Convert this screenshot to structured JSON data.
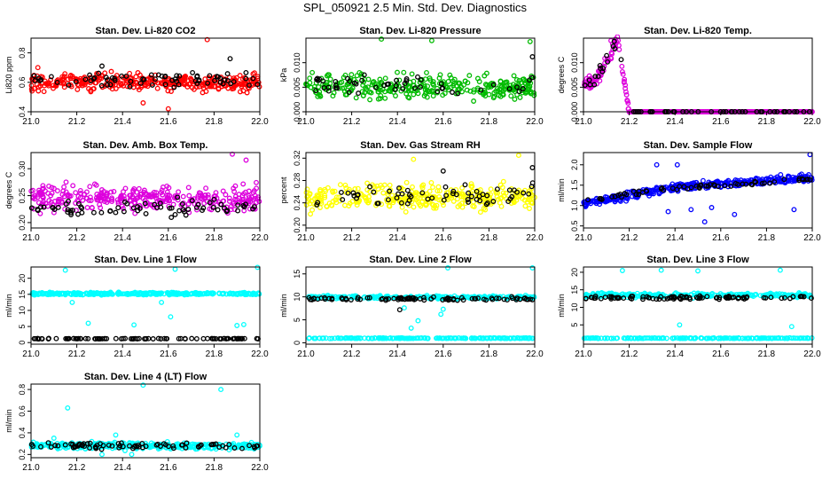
{
  "figure_title": "SPL_050921  2.5 Min. Std. Dev. Diagnostics",
  "chart_data": [
    {
      "type": "scatter",
      "title": "Stan. Dev. Li-820 CO2",
      "ylabel": "Li820 ppm",
      "xlim": [
        21.0,
        22.0
      ],
      "ylim": [
        0.4,
        0.9
      ],
      "xticks": [
        "21.0",
        "21.2",
        "21.4",
        "21.6",
        "21.8",
        "22.0"
      ],
      "yticks": [
        "0.4",
        "0.6",
        "0.8"
      ],
      "ytick_values": [
        0.4,
        0.6,
        0.8
      ],
      "series": [
        {
          "name": "primary",
          "color": "#ff0000",
          "center": 0.6,
          "spread": 0.055,
          "n": 330,
          "outliers": [
            [
              21.77,
              0.89
            ],
            [
              21.03,
              0.7
            ],
            [
              21.6,
              0.42
            ],
            [
              21.49,
              0.46
            ]
          ]
        },
        {
          "name": "secondary",
          "color": "#000000",
          "center": 0.62,
          "spread": 0.05,
          "n": 70,
          "outliers": [
            [
              21.31,
              0.71
            ],
            [
              21.87,
              0.76
            ]
          ]
        }
      ]
    },
    {
      "type": "scatter",
      "title": "Stan. Dev. Li-820 Pressure",
      "ylabel": "kPa",
      "xlim": [
        21.0,
        22.0
      ],
      "ylim": [
        0.0,
        0.015
      ],
      "xticks": [
        "21.0",
        "21.2",
        "21.4",
        "21.6",
        "21.8",
        "22.0"
      ],
      "yticks": [
        "0.000",
        "0.005",
        "0.010"
      ],
      "ytick_values": [
        0.0,
        0.005,
        0.01
      ],
      "series": [
        {
          "name": "primary",
          "color": "#00bb00",
          "center": 0.005,
          "spread": 0.0024,
          "n": 330,
          "outliers": [
            [
              21.33,
              0.0148
            ],
            [
              21.98,
              0.0143
            ],
            [
              21.55,
              0.0145
            ]
          ]
        },
        {
          "name": "secondary",
          "color": "#000000",
          "center": 0.0055,
          "spread": 0.0018,
          "n": 50,
          "outliers": [
            [
              21.99,
              0.0112
            ]
          ]
        }
      ]
    },
    {
      "type": "scatter",
      "title": "Stan. Dev. Li-820 Temp.",
      "ylabel": "degrees C",
      "xlim": [
        21.0,
        22.0
      ],
      "ylim": [
        0.0,
        0.015
      ],
      "xticks": [
        "21.0",
        "21.2",
        "21.4",
        "21.6",
        "21.8",
        "22.0"
      ],
      "yticks": [
        "0.000",
        "0.005",
        "0.010"
      ],
      "ytick_values": [
        0.0,
        0.005,
        0.01
      ],
      "series": [
        {
          "name": "primary",
          "color": "#dd00dd",
          "shape": "temp",
          "n": 420,
          "outliers": [
            [
              21.12,
              0.0145
            ],
            [
              21.14,
              0.0148
            ]
          ]
        },
        {
          "name": "secondary",
          "color": "#000000",
          "shape": "temp",
          "n": 60,
          "outliers": []
        }
      ]
    },
    {
      "type": "scatter",
      "title": "Stan. Dev. Amb. Box Temp.",
      "ylabel": "degrees C",
      "xlim": [
        21.0,
        22.0
      ],
      "ylim": [
        0.19,
        0.33
      ],
      "xticks": [
        "21.0",
        "21.2",
        "21.4",
        "21.6",
        "21.8",
        "22.0"
      ],
      "yticks": [
        "0.20",
        "0.25",
        "0.30"
      ],
      "ytick_values": [
        0.2,
        0.25,
        0.3
      ],
      "series": [
        {
          "name": "primary",
          "color": "#dd00dd",
          "center": 0.245,
          "spread": 0.022,
          "n": 330,
          "outliers": [
            [
              21.88,
              0.327
            ],
            [
              21.94,
              0.316
            ]
          ]
        },
        {
          "name": "secondary",
          "color": "#000000",
          "center": 0.228,
          "spread": 0.012,
          "n": 70,
          "outliers": [
            [
              21.64,
              0.247
            ],
            [
              21.8,
              0.243
            ]
          ]
        }
      ]
    },
    {
      "type": "scatter",
      "title": "Stan. Dev. Gas Stream RH",
      "ylabel": "percent",
      "xlim": [
        21.0,
        22.0
      ],
      "ylim": [
        0.195,
        0.33
      ],
      "xticks": [
        "21.0",
        "21.2",
        "21.4",
        "21.6",
        "21.8",
        "22.0"
      ],
      "yticks": [
        "0.20",
        "0.24",
        "0.28",
        "0.32"
      ],
      "ytick_values": [
        0.2,
        0.24,
        0.28,
        0.32
      ],
      "series": [
        {
          "name": "primary",
          "color": "#ffff00",
          "center": 0.25,
          "spread": 0.022,
          "n": 330,
          "outliers": [
            [
              21.93,
              0.325
            ],
            [
              21.47,
              0.318
            ]
          ]
        },
        {
          "name": "secondary",
          "color": "#000000",
          "center": 0.255,
          "spread": 0.018,
          "n": 60,
          "outliers": [
            [
              21.99,
              0.303
            ],
            [
              21.6,
              0.297
            ]
          ]
        }
      ]
    },
    {
      "type": "scatter",
      "title": "Stan. Dev. Sample Flow",
      "ylabel": "ml/min",
      "xlim": [
        21.0,
        22.0
      ],
      "ylim": [
        0.45,
        2.3
      ],
      "xticks": [
        "21.0",
        "21.2",
        "21.4",
        "21.6",
        "21.8",
        "22.0"
      ],
      "yticks": [
        "0.5",
        "1.0",
        "1.5",
        "2.0"
      ],
      "ytick_values": [
        0.5,
        1.0,
        1.5,
        2.0
      ],
      "series": [
        {
          "name": "primary",
          "color": "#0000ff",
          "shape": "trend",
          "start": 1.05,
          "end": 1.65,
          "spread": 0.09,
          "n": 360,
          "outliers": [
            [
              21.99,
              2.25
            ],
            [
              21.32,
              2.0
            ],
            [
              21.47,
              0.9
            ],
            [
              21.53,
              0.6
            ],
            [
              21.56,
              0.95
            ],
            [
              21.37,
              0.85
            ],
            [
              21.92,
              0.9
            ],
            [
              21.66,
              0.78
            ],
            [
              21.41,
              2.0
            ]
          ]
        },
        {
          "name": "secondary",
          "color": "#000000",
          "shape": "trend",
          "start": 1.1,
          "end": 1.62,
          "spread": 0.05,
          "n": 60,
          "outliers": []
        }
      ]
    },
    {
      "type": "scatter",
      "title": "Stan. Dev. Line 1 Flow",
      "ylabel": "ml/min",
      "xlim": [
        21.0,
        22.0
      ],
      "ylim": [
        -0.5,
        23.5
      ],
      "xticks": [
        "21.0",
        "21.2",
        "21.4",
        "21.6",
        "21.8",
        "22.0"
      ],
      "yticks": [
        "0",
        "5",
        "10",
        "15",
        "20"
      ],
      "ytick_values": [
        0,
        5,
        10,
        15,
        20
      ],
      "series": [
        {
          "name": "primary",
          "color": "#00ffff",
          "center": 15.2,
          "spread": 0.35,
          "n": 330,
          "outliers": [
            [
              21.15,
              22.5
            ],
            [
              21.63,
              22.8
            ],
            [
              21.99,
              23.4
            ],
            [
              21.18,
              12.5
            ],
            [
              21.25,
              6
            ],
            [
              21.45,
              5.5
            ],
            [
              21.61,
              8
            ],
            [
              21.9,
              5.3
            ],
            [
              21.93,
              5.6
            ],
            [
              21.57,
              12.5
            ]
          ]
        },
        {
          "name": "secondary",
          "color": "#000000",
          "center": 1.2,
          "spread": 0.08,
          "n": 90,
          "outliers": []
        }
      ]
    },
    {
      "type": "scatter",
      "title": "Stan. Dev. Line 2 Flow",
      "ylabel": "ml/min",
      "xlim": [
        21.0,
        22.0
      ],
      "ylim": [
        -0.3,
        16.5
      ],
      "xticks": [
        "21.0",
        "21.2",
        "21.4",
        "21.6",
        "21.8",
        "22.0"
      ],
      "yticks": [
        "0",
        "5",
        "10",
        "15"
      ],
      "ytick_values": [
        0,
        5,
        10,
        15
      ],
      "series": [
        {
          "name": "primary",
          "color": "#00ffff",
          "center": 9.9,
          "spread": 0.3,
          "n": 260,
          "outliers": [
            [
              21.62,
              16.3
            ],
            [
              21.99,
              16.3
            ],
            [
              21.49,
              4.8
            ],
            [
              21.46,
              3.2
            ],
            [
              21.59,
              6.2
            ],
            [
              21.6,
              7.3
            ],
            [
              21.43,
              7.6
            ]
          ]
        },
        {
          "name": "secondary",
          "color": "#000000",
          "center": 9.6,
          "spread": 0.35,
          "n": 90,
          "outliers": [
            [
              21.41,
              7.2
            ]
          ]
        },
        {
          "name": "tertiary",
          "color": "#00ffff",
          "center": 1.0,
          "spread": 0.07,
          "n": 200,
          "outliers": []
        }
      ]
    },
    {
      "type": "scatter",
      "title": "Stan. Dev. Line 3 Flow",
      "ylabel": "ml/min",
      "xlim": [
        21.0,
        22.0
      ],
      "ylim": [
        -0.5,
        21.5
      ],
      "xticks": [
        "21.0",
        "21.2",
        "21.4",
        "21.6",
        "21.8",
        "22.0"
      ],
      "yticks": [
        "5",
        "10",
        "15",
        "20"
      ],
      "ytick_values": [
        5,
        10,
        15,
        20
      ],
      "series": [
        {
          "name": "primary",
          "color": "#00ffff",
          "center": 13.5,
          "spread": 0.6,
          "n": 260,
          "outliers": [
            [
              21.17,
              20.5
            ],
            [
              21.34,
              20.6
            ],
            [
              21.5,
              20.4
            ],
            [
              21.86,
              20.6
            ],
            [
              21.42,
              5.0
            ],
            [
              21.91,
              4.5
            ]
          ]
        },
        {
          "name": "secondary",
          "color": "#000000",
          "center": 12.8,
          "spread": 0.45,
          "n": 90,
          "outliers": []
        },
        {
          "name": "tertiary",
          "color": "#00ffff",
          "center": 1.2,
          "spread": 0.08,
          "n": 200,
          "outliers": []
        }
      ]
    },
    {
      "type": "scatter",
      "title": "Stan. Dev. Line 4 (LT) Flow",
      "ylabel": "ml/min",
      "xlim": [
        21.0,
        22.0
      ],
      "ylim": [
        0.17,
        0.85
      ],
      "xticks": [
        "21.0",
        "21.2",
        "21.4",
        "21.6",
        "21.8",
        "22.0"
      ],
      "yticks": [
        "0.2",
        "0.4",
        "0.6",
        "0.8"
      ],
      "ytick_values": [
        0.2,
        0.4,
        0.6,
        0.8
      ],
      "series": [
        {
          "name": "primary",
          "color": "#00ffff",
          "center": 0.28,
          "spread": 0.028,
          "n": 330,
          "outliers": [
            [
              21.49,
              0.84
            ],
            [
              21.83,
              0.8
            ],
            [
              21.16,
              0.63
            ],
            [
              21.9,
              0.38
            ],
            [
              21.37,
              0.38
            ],
            [
              21.1,
              0.35
            ],
            [
              21.44,
              0.2
            ],
            [
              21.31,
              0.2
            ]
          ]
        },
        {
          "name": "secondary",
          "color": "#000000",
          "center": 0.28,
          "spread": 0.03,
          "n": 80,
          "outliers": []
        }
      ]
    }
  ]
}
